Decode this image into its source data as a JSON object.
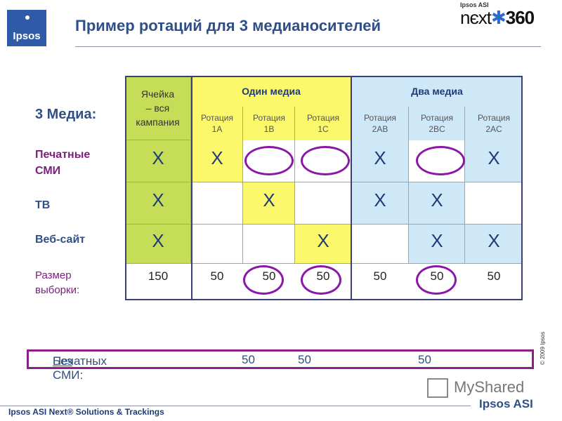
{
  "logo": {
    "text": "Ipsos"
  },
  "brand": {
    "small": "Ipsos ASI",
    "main_prefix": "nєxt",
    "main_suffix": "360"
  },
  "title": "Пример ротаций для 3 медианосителей",
  "row_labels": {
    "three_media": "3 Медиа:",
    "print_line1": "Печатные",
    "print_line2": "СМИ",
    "tv": "ТВ",
    "web": "Веб-сайт",
    "size_line1": "Размер",
    "size_line2": "выборки:"
  },
  "table": {
    "cell_header_lines": [
      "Ячейка",
      "– вся",
      "кампания"
    ],
    "group_one": "Один медиа",
    "group_two": "Два медиа",
    "rotation_word": "Ротация",
    "rotations": [
      "1A",
      "1B",
      "1C",
      "2AB",
      "2BC",
      "2AC"
    ],
    "rows": {
      "print": [
        "X",
        "X",
        "",
        "",
        "X",
        "",
        "X"
      ],
      "tv": [
        "X",
        "",
        "X",
        "",
        "X",
        "X",
        ""
      ],
      "web": [
        "X",
        "",
        "",
        "X",
        "",
        "X",
        "X"
      ],
      "size": [
        "150",
        "50",
        "50",
        "50",
        "50",
        "50",
        "50"
      ]
    }
  },
  "bottom_bar": {
    "label_underlined": "Без",
    "label_rest": " Печатных СМИ:",
    "values": [
      "50",
      "50",
      "50"
    ]
  },
  "copyright": "© 2009 Ipsos",
  "watermark": {
    "text": "MyShared",
    "sub": "Ipsos ASI"
  },
  "footer": "Ipsos ASI Next® Solutions & Trackings"
}
